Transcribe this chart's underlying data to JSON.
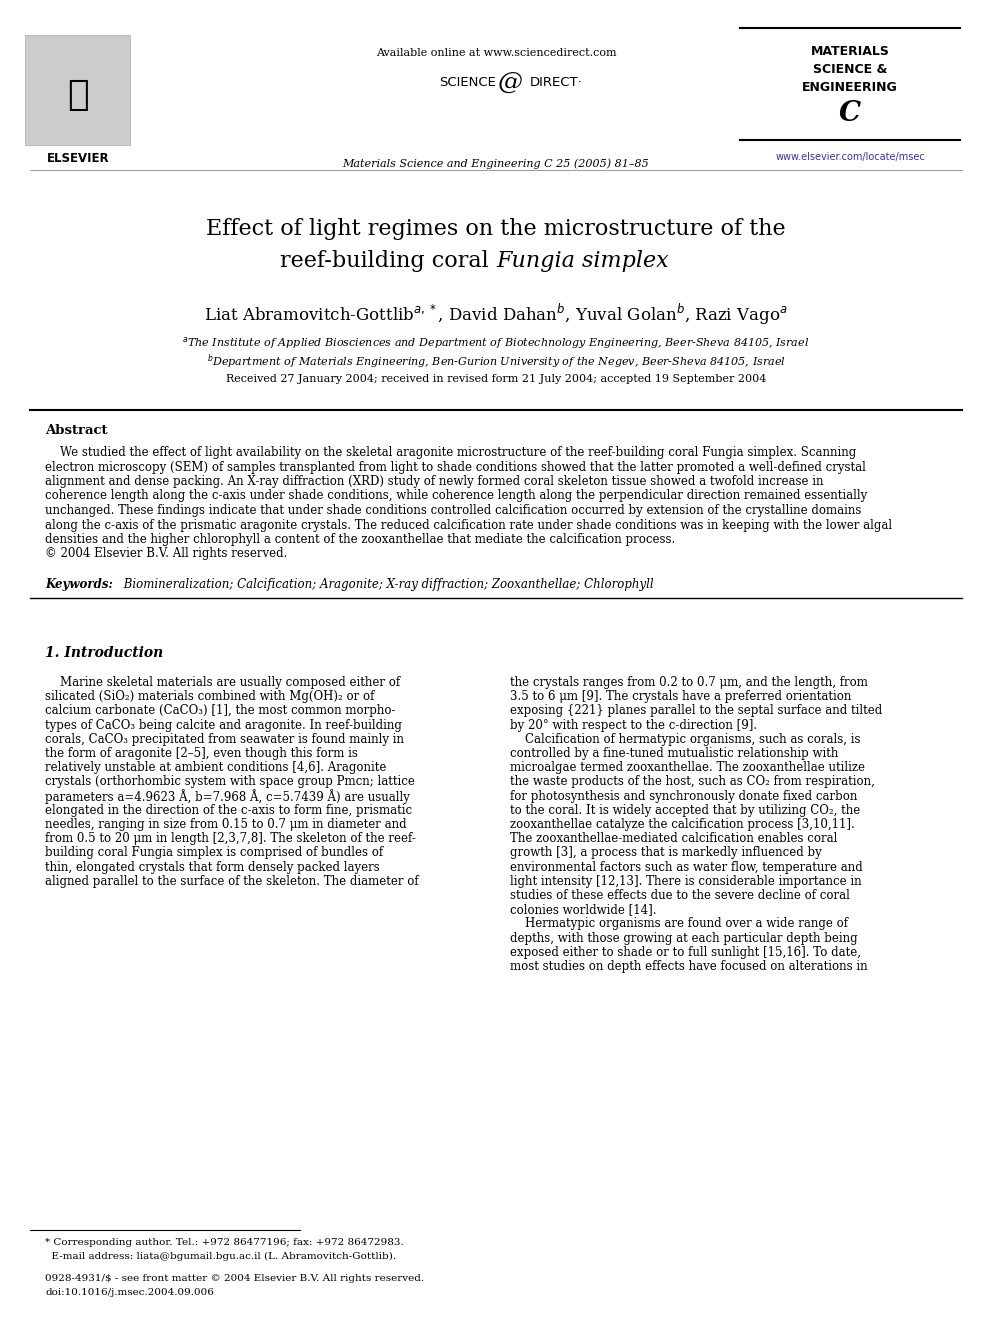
{
  "available_online": "Available online at www.sciencedirect.com",
  "science_direct_text": "SCIENCE    DIRECT·",
  "journal_line": "Materials Science and Engineering C 25 (2005) 81–85",
  "elsevier_text": "ELSEVIER",
  "journal_box_lines": [
    "MATERIALS",
    "SCIENCE &",
    "ENGINEERING"
  ],
  "journal_box_c": "C",
  "journal_url": "www.elsevier.com/locate/msec",
  "title_line1": "Effect of light regimes on the microstructure of the",
  "title_line2_normal": "reef-building coral ",
  "title_line2_italic": "Fungia simplex",
  "authors_line": "Liat Abramovitch-Gottlib$^{a,*}$, David Dahan$^{b}$, Yuval Golan$^{b}$, Razi Vago$^{a}$",
  "affil_a": "$^{a}$The Institute of Applied Biosciences and Department of Biotechnology Engineering, Beer-Sheva 84105, Israel",
  "affil_b": "$^{b}$Department of Materials Engineering, Ben-Gurion University of the Negev, Beer-Sheva 84105, Israel",
  "received": "Received 27 January 2004; received in revised form 21 July 2004; accepted 19 September 2004",
  "abstract_title": "Abstract",
  "abstract_lines": [
    "    We studied the effect of light availability on the skeletal aragonite microstructure of the reef-building coral Fungia simplex. Scanning",
    "electron microscopy (SEM) of samples transplanted from light to shade conditions showed that the latter promoted a well-defined crystal",
    "alignment and dense packing. An X-ray diffraction (XRD) study of newly formed coral skeleton tissue showed a twofold increase in",
    "coherence length along the c-axis under shade conditions, while coherence length along the perpendicular direction remained essentially",
    "unchanged. These findings indicate that under shade conditions controlled calcification occurred by extension of the crystalline domains",
    "along the c-axis of the prismatic aragonite crystals. The reduced calcification rate under shade conditions was in keeping with the lower algal",
    "densities and the higher chlorophyll a content of the zooxanthellae that mediate the calcification process.",
    "© 2004 Elsevier B.V. All rights reserved."
  ],
  "keywords_label": "Keywords:",
  "keywords_text": " Biomineralization; Calcification; Aragonite; X-ray diffraction; Zooxanthellae; Chlorophyll",
  "section1_title": "1. Introduction",
  "col1_lines": [
    "    Marine skeletal materials are usually composed either of",
    "silicated (SiO₂) materials combined with Mg(OH)₂ or of",
    "calcium carbonate (CaCO₃) [1], the most common morpho-",
    "types of CaCO₃ being calcite and aragonite. In reef-building",
    "corals, CaCO₃ precipitated from seawater is found mainly in",
    "the form of aragonite [2–5], even though this form is",
    "relatively unstable at ambient conditions [4,6]. Aragonite",
    "crystals (orthorhombic system with space group Pmcn; lattice",
    "parameters a=4.9623 Å, b=7.968 Å, c=5.7439 Å) are usually",
    "elongated in the direction of the c-axis to form fine, prismatic",
    "needles, ranging in size from 0.15 to 0.7 μm in diameter and",
    "from 0.5 to 20 μm in length [2,3,7,8]. The skeleton of the reef-",
    "building coral Fungia simplex is comprised of bundles of",
    "thin, elongated crystals that form densely packed layers",
    "aligned parallel to the surface of the skeleton. The diameter of"
  ],
  "col2_lines": [
    "the crystals ranges from 0.2 to 0.7 μm, and the length, from",
    "3.5 to 6 μm [9]. The crystals have a preferred orientation",
    "exposing {221} planes parallel to the septal surface and tilted",
    "by 20° with respect to the c-direction [9].",
    "    Calcification of hermatypic organisms, such as corals, is",
    "controlled by a fine-tuned mutualistic relationship with",
    "microalgae termed zooxanthellae. The zooxanthellae utilize",
    "the waste products of the host, such as CO₂ from respiration,",
    "for photosynthesis and synchronously donate fixed carbon",
    "to the coral. It is widely accepted that by utilizing CO₂, the",
    "zooxanthellae catalyze the calcification process [3,10,11].",
    "The zooxanthellae-mediated calcification enables coral",
    "growth [3], a process that is markedly influenced by",
    "environmental factors such as water flow, temperature and",
    "light intensity [12,13]. There is considerable importance in",
    "studies of these effects due to the severe decline of coral",
    "colonies worldwide [14].",
    "    Hermatypic organisms are found over a wide range of",
    "depths, with those growing at each particular depth being",
    "exposed either to shade or to full sunlight [15,16]. To date,",
    "most studies on depth effects have focused on alterations in"
  ],
  "footnote_line1": "* Corresponding author. Tel.: +972 86477196; fax: +972 86472983.",
  "footnote_line2": "  E-mail address: liata@bgumail.bgu.ac.il (L. Abramovitch-Gottlib).",
  "footer_line1": "0928-4931/$ - see front matter © 2004 Elsevier B.V. All rights reserved.",
  "footer_line2": "doi:10.1016/j.msec.2004.09.006",
  "bg": "#ffffff"
}
